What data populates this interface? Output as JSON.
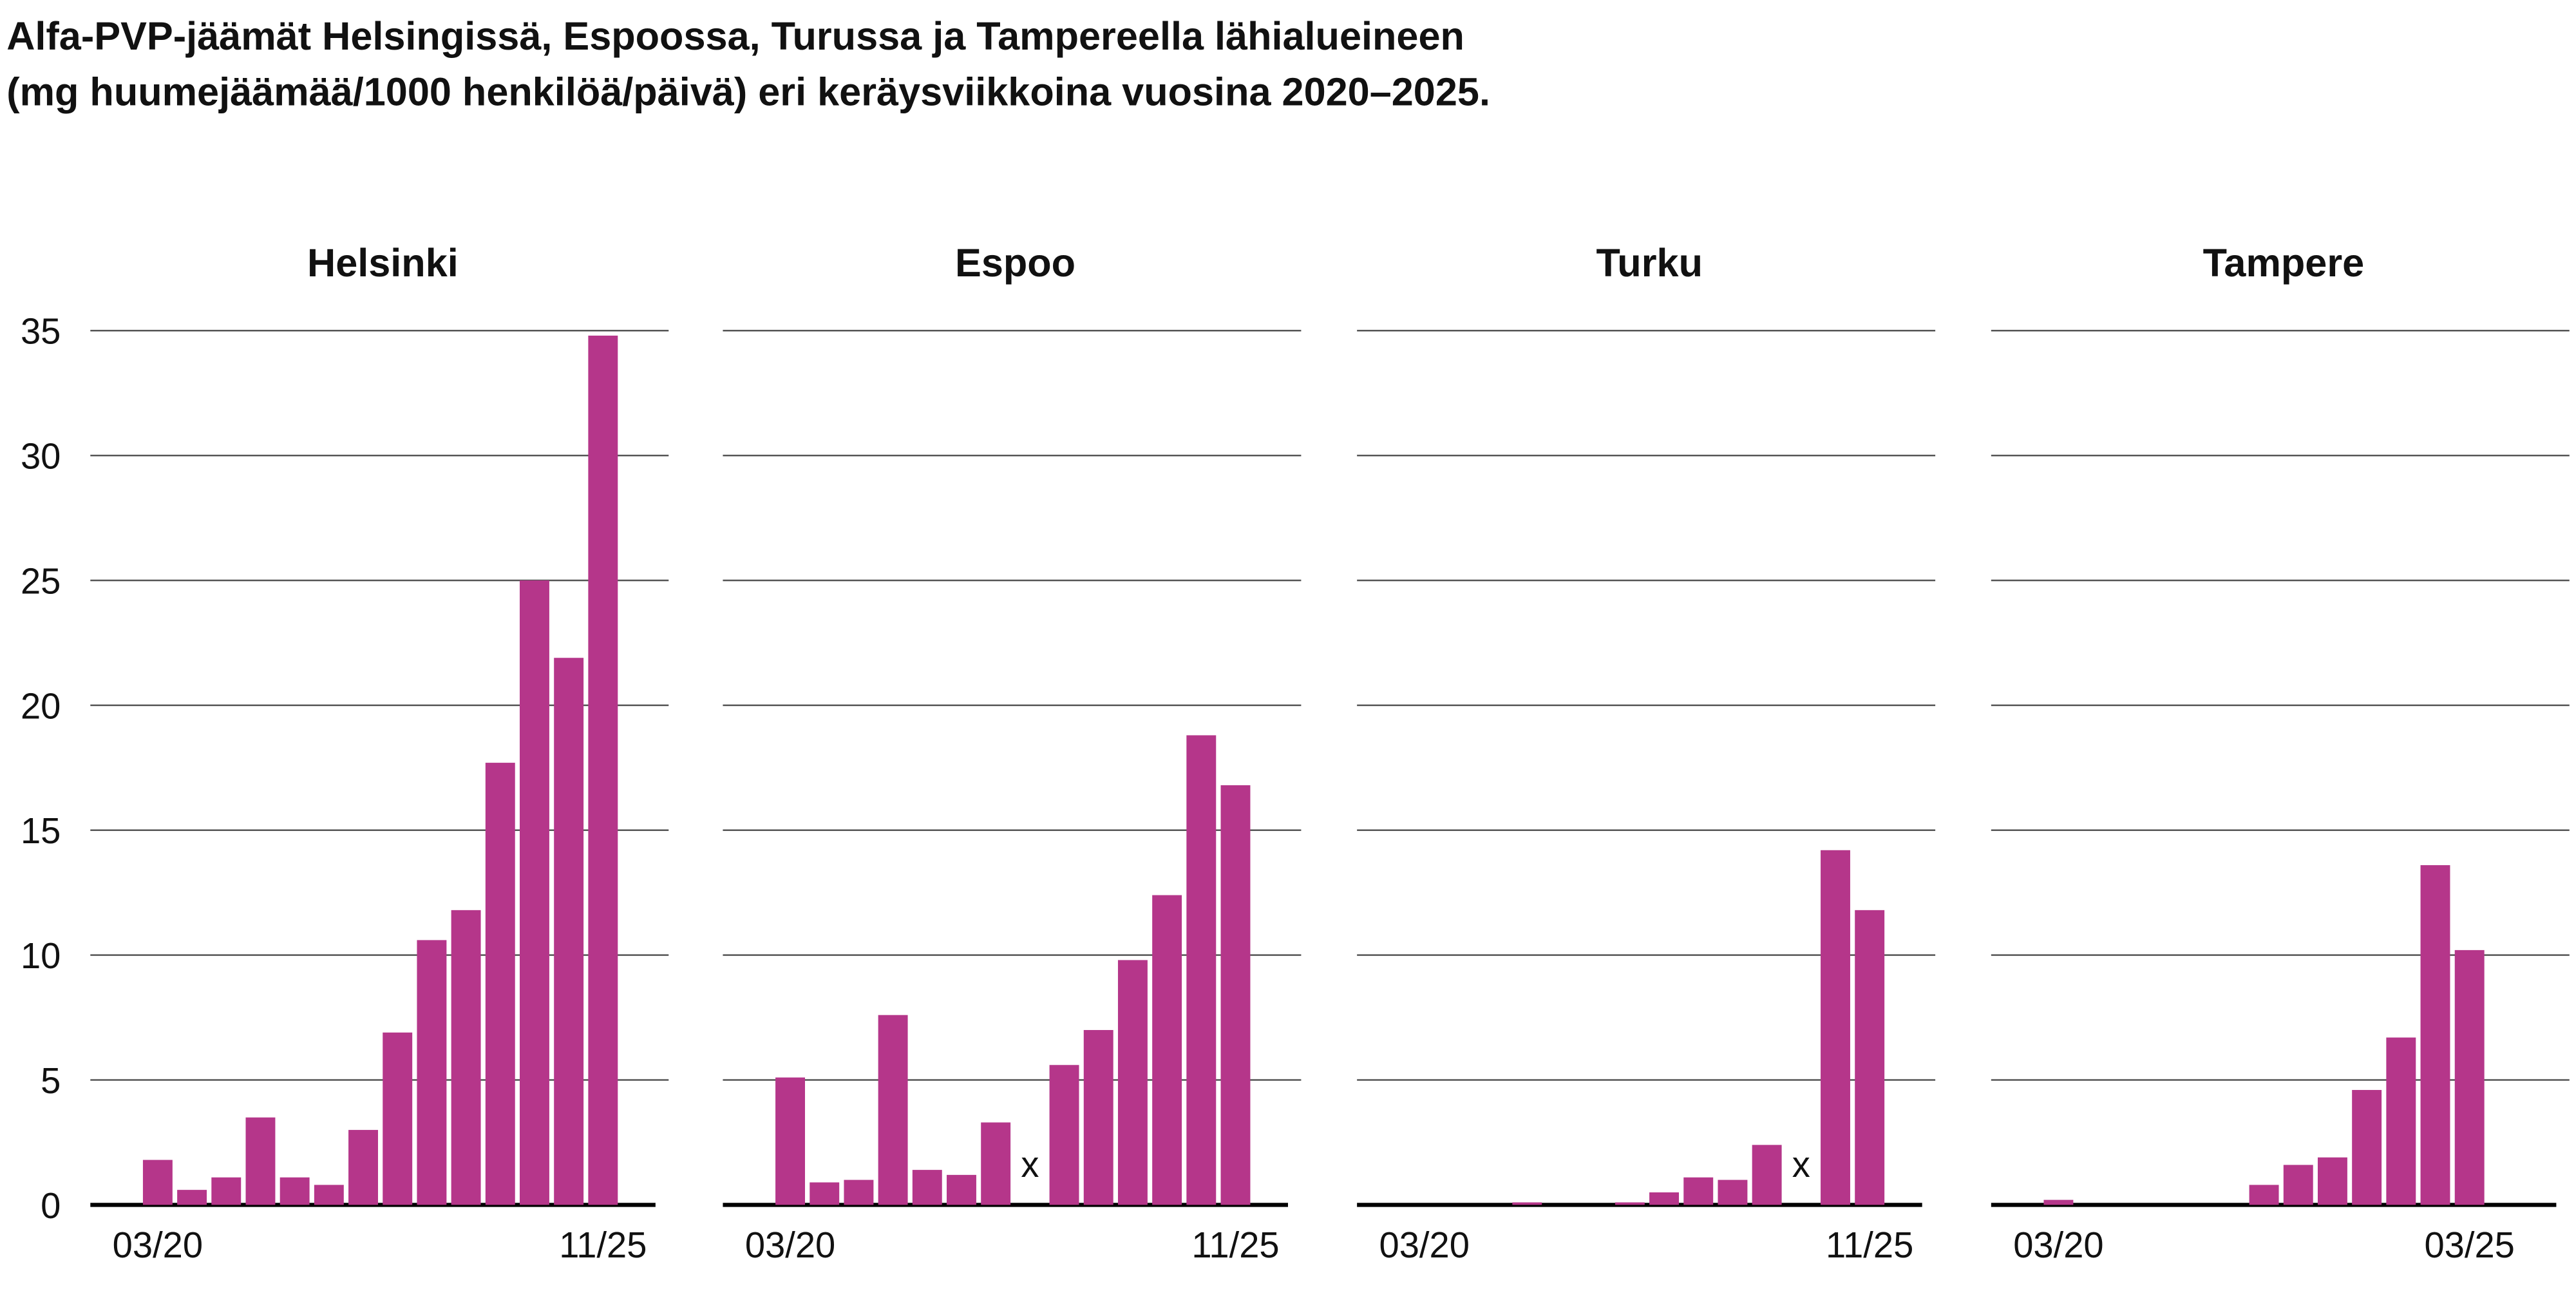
{
  "title": [
    "Alfa-PVP-jäämät Helsingissä, Espoossa, Turussa ja Tampereella lähialueineen",
    "(mg huumejäämää/1000 henkilöä/päivä) eri keräysviikkoina vuosina 2020–2025."
  ],
  "chart_data": [
    {
      "type": "bar",
      "title": "Helsinki",
      "color": "#b5368a",
      "grid": true,
      "categories": [
        "03/20",
        null,
        null,
        null,
        null,
        null,
        null,
        null,
        null,
        null,
        null,
        null,
        null,
        "11/25"
      ],
      "values": [
        1.8,
        0.6,
        1.1,
        3.5,
        1.1,
        0.8,
        3.0,
        6.9,
        10.6,
        11.8,
        17.7,
        25.0,
        21.9,
        34.8
      ],
      "ylim": [
        0,
        35
      ],
      "yticks": [
        0,
        5,
        10,
        15,
        20,
        25,
        30,
        35
      ]
    },
    {
      "type": "bar",
      "title": "Espoo",
      "color": "#b5368a",
      "grid": true,
      "categories": [
        "03/20",
        null,
        null,
        null,
        null,
        null,
        null,
        null,
        null,
        null,
        null,
        null,
        null,
        "11/25"
      ],
      "values": [
        5.1,
        0.9,
        1.0,
        7.6,
        1.4,
        1.2,
        3.3,
        null,
        5.6,
        7.0,
        9.8,
        12.4,
        18.8,
        16.8
      ],
      "value_labels": [
        null,
        null,
        null,
        null,
        null,
        null,
        null,
        "x",
        null,
        null,
        null,
        null,
        null,
        null
      ],
      "ylim": [
        0,
        35
      ],
      "yticks": [
        0,
        5,
        10,
        15,
        20,
        25,
        30,
        35
      ]
    },
    {
      "type": "bar",
      "title": "Turku",
      "color": "#b5368a",
      "grid": true,
      "categories": [
        "03/20",
        null,
        null,
        null,
        null,
        null,
        null,
        null,
        null,
        null,
        null,
        null,
        null,
        "11/25"
      ],
      "values": [
        0,
        0,
        0,
        0.1,
        0,
        0,
        0.1,
        0.5,
        1.1,
        1.0,
        2.4,
        null,
        14.2,
        11.8
      ],
      "value_labels": [
        null,
        null,
        null,
        null,
        null,
        null,
        null,
        null,
        null,
        null,
        null,
        "x",
        null,
        null
      ],
      "ylim": [
        0,
        35
      ],
      "yticks": [
        0,
        5,
        10,
        15,
        20,
        25,
        30,
        35
      ]
    },
    {
      "type": "bar",
      "title": "Tampere",
      "color": "#b5368a",
      "grid": true,
      "categories": [
        "03/20",
        null,
        null,
        null,
        null,
        null,
        null,
        null,
        null,
        null,
        null,
        null,
        "03/25"
      ],
      "values": [
        0.2,
        0,
        0,
        0,
        0,
        0,
        0.8,
        1.6,
        1.9,
        4.6,
        6.7,
        13.6,
        10.2
      ],
      "ylim": [
        0,
        35
      ],
      "yticks": [
        0,
        5,
        10,
        15,
        20,
        25,
        30,
        35
      ]
    }
  ]
}
